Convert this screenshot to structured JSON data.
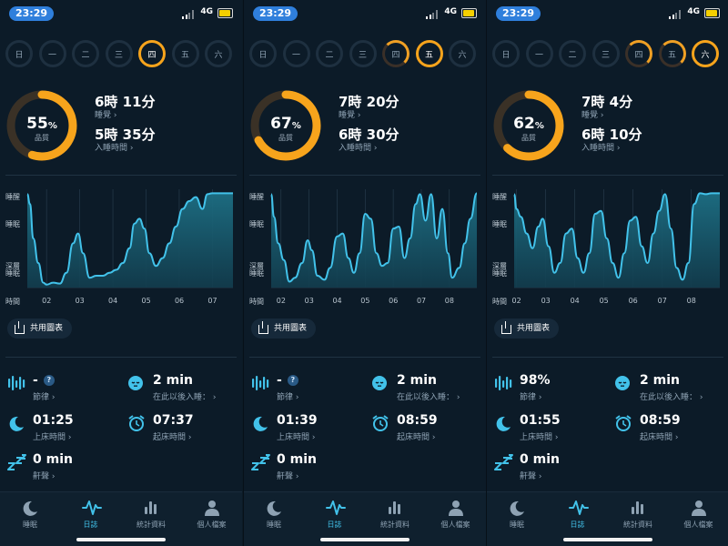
{
  "status": {
    "time": "23:29",
    "network": "4G"
  },
  "days": [
    "日",
    "一",
    "二",
    "三",
    "四",
    "五",
    "六"
  ],
  "axis": {
    "y_labels": {
      "awake": "睡醒",
      "sleep": "睡眠",
      "deep1": "深層",
      "deep2": "睡眠"
    },
    "x_title": "時間"
  },
  "labels": {
    "sleep": "睡覺",
    "fall_asleep_time": "入睡時間",
    "quality": "品質",
    "share": "共用圖表",
    "rhythm": "節律",
    "fell_asleep_after": "在此以後入睡：",
    "bed_time": "上床時間",
    "wake_time": "起床時間",
    "snore": "鼾聲",
    "help": "?"
  },
  "tabs": [
    {
      "label": "睡眠",
      "icon": "moon-icon"
    },
    {
      "label": "日誌",
      "icon": "pulse-icon",
      "active": true
    },
    {
      "label": "統計資料",
      "icon": "bar-chart-icon"
    },
    {
      "label": "個人檔案",
      "icon": "person-icon"
    }
  ],
  "colors": {
    "accent": "#42c2ea",
    "quality": "#f7a41c",
    "background": "#0c1b28"
  },
  "screens": [
    {
      "active_day": 4,
      "completed_days": [],
      "quality_pct": "55",
      "quality_value": 55,
      "sleep_duration": "6時 11分",
      "fall_asleep_time": "5時 35分",
      "rhythm": "-",
      "show_rhythm_help": true,
      "fell_asleep_after": "2 min",
      "bed_time": "01:25",
      "wake_time": "07:37",
      "snore": "0 min",
      "chart_data": {
        "type": "area",
        "x_ticks": [
          "02",
          "03",
          "04",
          "05",
          "06",
          "07"
        ],
        "x_start": 1.42,
        "x_end": 7.62,
        "series": [
          {
            "x": [
              1.42,
              1.5,
              1.6,
              1.75,
              1.9,
              2.0,
              2.2,
              2.4,
              2.6,
              2.8,
              2.95,
              3.1,
              3.3,
              3.5,
              3.7,
              3.9,
              4.1,
              4.3,
              4.5,
              4.65,
              4.8,
              4.95,
              5.1,
              5.3,
              5.5,
              5.7,
              5.9,
              6.1,
              6.3,
              6.5,
              6.7,
              6.85,
              7.0,
              7.2,
              7.4,
              7.62
            ],
            "y": [
              0.95,
              0.85,
              0.5,
              0.25,
              0.05,
              0.03,
              0.05,
              0.04,
              0.15,
              0.45,
              0.55,
              0.35,
              0.1,
              0.12,
              0.12,
              0.15,
              0.18,
              0.25,
              0.4,
              0.65,
              0.7,
              0.6,
              0.35,
              0.22,
              0.3,
              0.45,
              0.62,
              0.8,
              0.88,
              0.92,
              0.8,
              0.95,
              0.96,
              0.96,
              0.96,
              0.96
            ]
          }
        ]
      }
    },
    {
      "active_day": 5,
      "completed_days": [
        4
      ],
      "quality_pct": "67",
      "quality_value": 67,
      "sleep_duration": "7時 20分",
      "fall_asleep_time": "6時 30分",
      "rhythm": "-",
      "show_rhythm_help": true,
      "fell_asleep_after": "2 min",
      "bed_time": "01:39",
      "wake_time": "08:59",
      "snore": "0 min",
      "chart_data": {
        "type": "area",
        "x_ticks": [
          "02",
          "03",
          "04",
          "05",
          "06",
          "07",
          "08"
        ],
        "x_start": 1.65,
        "x_end": 8.98,
        "series": [
          {
            "x": [
              1.65,
              1.75,
              1.9,
              2.1,
              2.3,
              2.5,
              2.75,
              2.95,
              3.1,
              3.3,
              3.55,
              3.75,
              4.0,
              4.2,
              4.4,
              4.6,
              4.8,
              5.0,
              5.2,
              5.4,
              5.6,
              5.8,
              6.0,
              6.2,
              6.4,
              6.6,
              6.8,
              6.95,
              7.15,
              7.35,
              7.55,
              7.75,
              7.95,
              8.1,
              8.35,
              8.55,
              8.75,
              8.98
            ],
            "y": [
              0.95,
              0.72,
              0.45,
              0.28,
              0.06,
              0.1,
              0.25,
              0.48,
              0.38,
              0.12,
              0.08,
              0.2,
              0.52,
              0.55,
              0.3,
              0.15,
              0.35,
              0.75,
              0.7,
              0.35,
              0.22,
              0.25,
              0.6,
              0.62,
              0.3,
              0.5,
              0.85,
              0.95,
              0.68,
              0.95,
              0.5,
              0.8,
              0.35,
              0.1,
              0.2,
              0.45,
              0.7,
              0.96
            ]
          }
        ]
      }
    },
    {
      "active_day": 6,
      "completed_days": [
        4,
        5
      ],
      "quality_pct": "62",
      "quality_value": 62,
      "sleep_duration": "7時 4分",
      "fall_asleep_time": "6時 10分",
      "rhythm": "98%",
      "show_rhythm_help": false,
      "fell_asleep_after": "2 min",
      "bed_time": "01:55",
      "wake_time": "08:59",
      "snore": "0 min",
      "chart_data": {
        "type": "area",
        "x_ticks": [
          "02",
          "03",
          "04",
          "05",
          "06",
          "07",
          "08"
        ],
        "x_start": 1.92,
        "x_end": 8.98,
        "series": [
          {
            "x": [
              1.92,
              2.0,
              2.15,
              2.35,
              2.55,
              2.75,
              2.9,
              3.1,
              3.3,
              3.5,
              3.7,
              3.9,
              4.1,
              4.3,
              4.5,
              4.7,
              4.9,
              5.1,
              5.3,
              5.5,
              5.7,
              5.9,
              6.1,
              6.3,
              6.5,
              6.7,
              6.9,
              7.1,
              7.3,
              7.5,
              7.7,
              7.9,
              8.1,
              8.3,
              8.5,
              8.7,
              8.98
            ],
            "y": [
              0.95,
              0.8,
              0.72,
              0.55,
              0.4,
              0.62,
              0.7,
              0.42,
              0.15,
              0.25,
              0.55,
              0.6,
              0.3,
              0.15,
              0.35,
              0.75,
              0.78,
              0.5,
              0.25,
              0.1,
              0.35,
              0.68,
              0.72,
              0.42,
              0.25,
              0.55,
              0.78,
              0.95,
              0.6,
              0.2,
              0.08,
              0.25,
              0.85,
              0.96,
              0.95,
              0.96,
              0.96
            ]
          }
        ]
      }
    }
  ]
}
